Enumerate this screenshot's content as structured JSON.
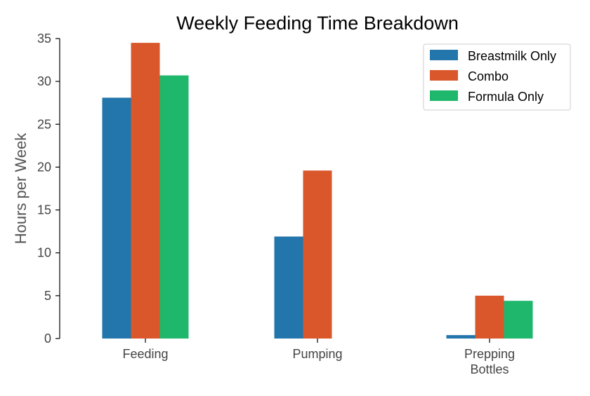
{
  "chart_data": {
    "type": "bar",
    "title": "Weekly Feeding Time Breakdown",
    "xlabel": "",
    "ylabel": "Hours per Week",
    "categories": [
      "Feeding",
      "Pumping",
      "Prepping\nBottles"
    ],
    "series": [
      {
        "name": "Breastmilk Only",
        "color": "#2276ab",
        "values": [
          28.1,
          11.9,
          0.4
        ]
      },
      {
        "name": "Combo",
        "color": "#d9572b",
        "values": [
          34.5,
          19.6,
          5.0
        ]
      },
      {
        "name": "Formula Only",
        "color": "#1fb76b",
        "values": [
          30.7,
          0,
          4.4
        ]
      }
    ],
    "ylim": [
      0,
      35
    ],
    "yticks": [
      0,
      5,
      10,
      15,
      20,
      25,
      30,
      35
    ],
    "grid": false,
    "legend": "top-right"
  }
}
